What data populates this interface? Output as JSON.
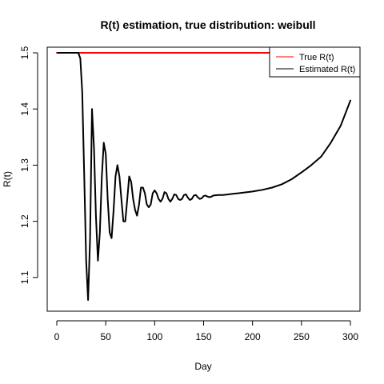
{
  "chart_data": {
    "type": "line",
    "title": "R(t) estimation, true distribution: weibull",
    "xlabel": "Day",
    "ylabel": "R(t)",
    "xlim": [
      0,
      300
    ],
    "ylim": [
      1.04,
      1.51
    ],
    "x_ticks": [
      0,
      50,
      100,
      150,
      200,
      250,
      300
    ],
    "y_ticks": [
      1.1,
      1.2,
      1.3,
      1.4,
      1.5
    ],
    "grid": false,
    "legend": {
      "placement": "top-right",
      "entries": [
        "True R(t)",
        "Estimated R(t)"
      ]
    },
    "series": [
      {
        "name": "True R(t)",
        "color": "#ff0000",
        "x": [
          0,
          300
        ],
        "y": [
          1.5,
          1.5
        ]
      },
      {
        "name": "Estimated R(t)",
        "color": "#000000",
        "x": [
          1,
          20,
          22,
          24,
          26,
          28,
          30,
          32,
          34,
          36,
          38,
          40,
          42,
          44,
          46,
          48,
          50,
          52,
          54,
          56,
          58,
          60,
          62,
          64,
          66,
          68,
          70,
          72,
          74,
          76,
          78,
          80,
          82,
          84,
          86,
          88,
          90,
          92,
          94,
          96,
          98,
          100,
          102,
          104,
          106,
          108,
          110,
          112,
          114,
          116,
          118,
          120,
          122,
          124,
          126,
          128,
          130,
          132,
          134,
          136,
          138,
          140,
          142,
          144,
          146,
          148,
          150,
          152,
          154,
          156,
          158,
          160,
          165,
          170,
          175,
          180,
          185,
          190,
          195,
          200,
          210,
          220,
          230,
          240,
          250,
          260,
          270,
          280,
          290,
          300
        ],
        "y": [
          1.5,
          1.5,
          1.5,
          1.49,
          1.43,
          1.28,
          1.13,
          1.06,
          1.17,
          1.4,
          1.33,
          1.21,
          1.13,
          1.18,
          1.28,
          1.34,
          1.32,
          1.24,
          1.18,
          1.17,
          1.22,
          1.28,
          1.3,
          1.28,
          1.24,
          1.2,
          1.2,
          1.24,
          1.28,
          1.27,
          1.24,
          1.22,
          1.21,
          1.23,
          1.26,
          1.26,
          1.25,
          1.23,
          1.225,
          1.23,
          1.25,
          1.255,
          1.25,
          1.24,
          1.235,
          1.24,
          1.252,
          1.25,
          1.24,
          1.235,
          1.24,
          1.248,
          1.247,
          1.24,
          1.238,
          1.24,
          1.247,
          1.248,
          1.242,
          1.238,
          1.24,
          1.246,
          1.247,
          1.243,
          1.24,
          1.241,
          1.245,
          1.246,
          1.244,
          1.243,
          1.244,
          1.246,
          1.247,
          1.247,
          1.248,
          1.249,
          1.25,
          1.251,
          1.252,
          1.253,
          1.256,
          1.26,
          1.266,
          1.275,
          1.287,
          1.3,
          1.315,
          1.34,
          1.37,
          1.415
        ]
      }
    ]
  }
}
